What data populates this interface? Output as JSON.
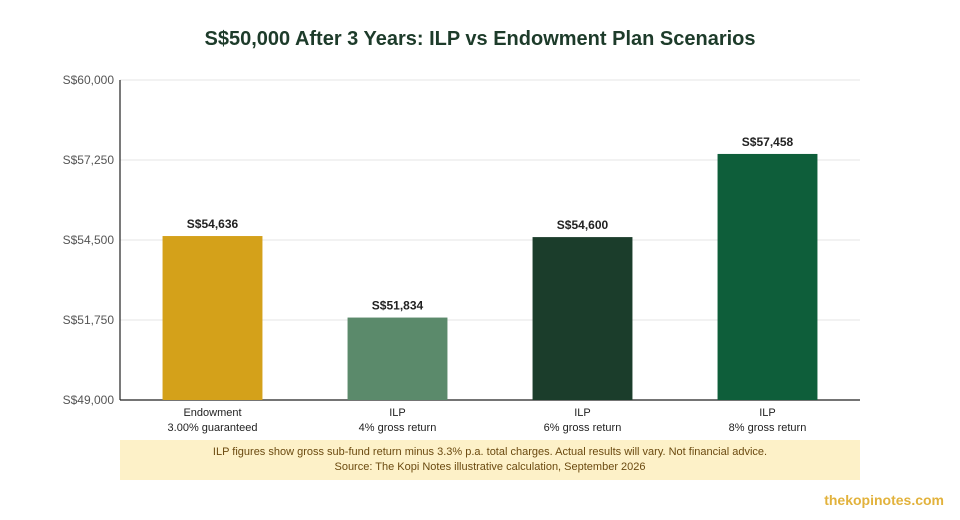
{
  "chart_data": {
    "type": "bar",
    "title": "S$50,000 After 3 Years: ILP vs Endowment Plan Scenarios",
    "categories": [
      [
        "Endowment",
        "3.00% guaranteed"
      ],
      [
        "ILP",
        "4% gross return"
      ],
      [
        "ILP",
        "6% gross return"
      ],
      [
        "ILP",
        "8% gross return"
      ]
    ],
    "values": [
      54636,
      51834,
      54600,
      57458
    ],
    "value_labels": [
      "S$54,636",
      "S$51,834",
      "S$54,600",
      "S$57,458"
    ],
    "bar_colors": [
      "#d4a11a",
      "#5b8a6b",
      "#1b3d2b",
      "#0e5e3a"
    ],
    "ylim": [
      49000,
      60000
    ],
    "yticks": [
      49000,
      51750,
      54500,
      57250,
      60000
    ],
    "ytick_labels": [
      "S$49,000",
      "S$51,750",
      "S$54,500",
      "S$57,250",
      "S$60,000"
    ],
    "grid": true,
    "xlabel": "",
    "ylabel": ""
  },
  "note": {
    "line1": "ILP figures show gross sub-fund return minus 3.3% p.a. total charges. Actual results will vary. Not financial advice.",
    "line2": "Source: The Kopi Notes illustrative calculation, September 2026"
  },
  "brand": "thekopinotes.com"
}
